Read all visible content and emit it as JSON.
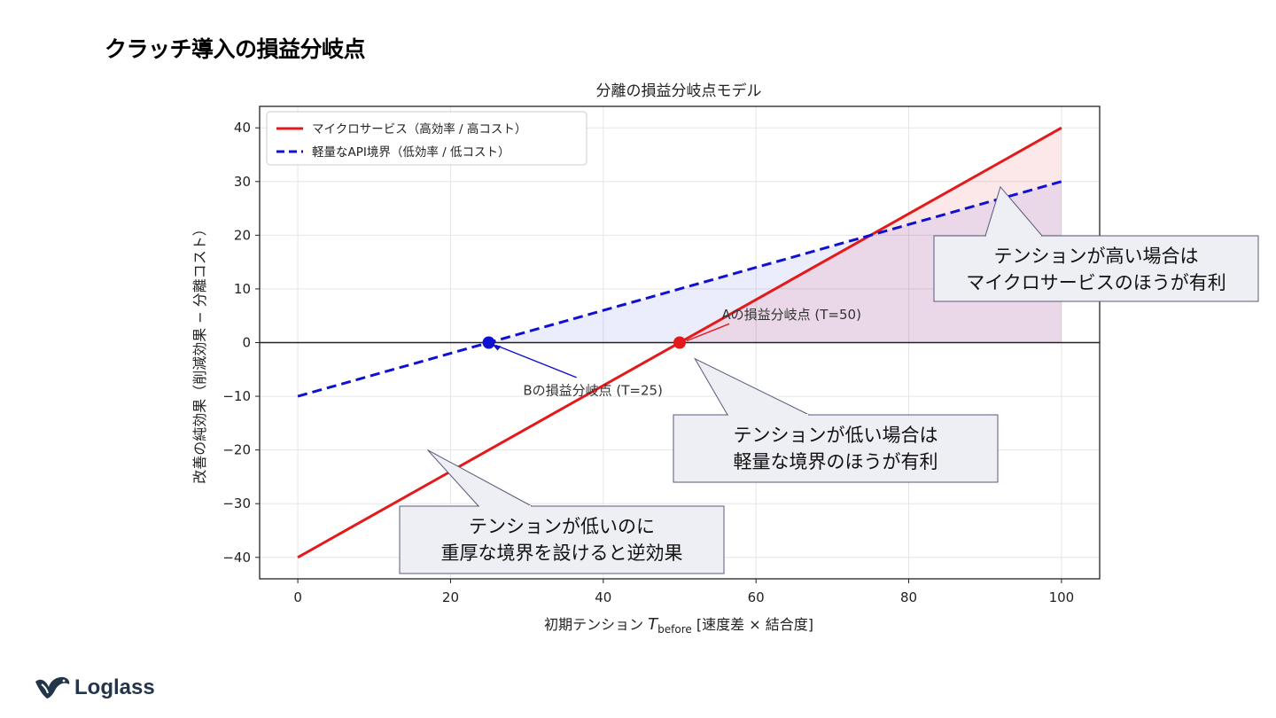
{
  "slide": {
    "title": "クラッチ導入の損益分岐点"
  },
  "logo": {
    "text": "Loglass"
  },
  "chart_data": {
    "type": "line",
    "title": "分離の損益分岐点モデル",
    "xlabel_main": "初期テンション ",
    "xlabel_symbol": "T",
    "xlabel_sub": "before",
    "xlabel_unit": " [速度差 × 結合度]",
    "ylabel": "改善の純効果（削減効果 − 分離コスト）",
    "xlim": [
      -5,
      105
    ],
    "ylim": [
      -44,
      44
    ],
    "xticks": [
      0,
      20,
      40,
      60,
      80,
      100
    ],
    "yticks": [
      -40,
      -30,
      -20,
      -10,
      0,
      10,
      20,
      30,
      40
    ],
    "grid": true,
    "legend_position": "top-left",
    "series": [
      {
        "name": "マイクロサービス（高効率 / 高コスト）",
        "x": [
          0,
          100
        ],
        "y": [
          -40,
          40
        ],
        "color": "#e31a1c",
        "dash": "solid"
      },
      {
        "name": "軽量なAPI境界（低効率 / 低コスト）",
        "x": [
          0,
          100
        ],
        "y": [
          -10,
          30
        ],
        "color": "#1010d0",
        "dash": "dashed"
      }
    ],
    "zero_line": 0,
    "breakeven_points": [
      {
        "label": "Aの損益分岐点 (T=50)",
        "x": 50,
        "y": 0,
        "color": "#e31a1c"
      },
      {
        "label": "Bの損益分岐点 (T=25)",
        "x": 25,
        "y": 0,
        "color": "#1010d0"
      }
    ],
    "callouts": [
      {
        "lines": [
          "テンションが高い場合は",
          "マイクロサービスのほうが有利"
        ],
        "pointer": [
          92,
          29
        ]
      },
      {
        "lines": [
          "テンションが低い場合は",
          "軽量な境界のほうが有利"
        ],
        "pointer": [
          52,
          -3
        ]
      },
      {
        "lines": [
          "テンションが低いのに",
          "重厚な境界を設けると逆効果"
        ],
        "pointer": [
          17,
          -20
        ]
      }
    ]
  }
}
